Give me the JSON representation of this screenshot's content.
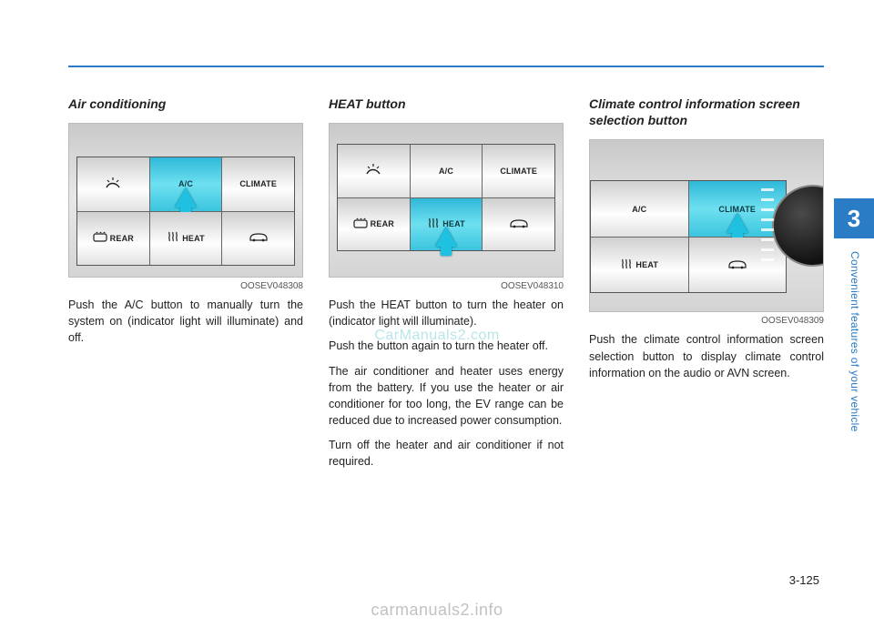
{
  "page": {
    "chapter_number": "3",
    "chapter_title": "Convenient features of your vehicle",
    "page_number": "3-125",
    "watermark_center": "CarManuals2.com",
    "watermark_footer": "carmanuals2.info",
    "accent_color": "#2a7cc4"
  },
  "col1": {
    "heading": "Air conditioning",
    "figure_code": "OOSEV048308",
    "figure": {
      "rows": [
        [
          {
            "label": "",
            "icon": "airflow",
            "active": false
          },
          {
            "label": "A/C",
            "icon": "",
            "active": true,
            "arrow": true
          },
          {
            "label": "CLIMATE",
            "icon": "",
            "active": false
          }
        ],
        [
          {
            "label": "REAR",
            "icon": "defrost",
            "active": false
          },
          {
            "label": "HEAT",
            "icon": "heatwaves",
            "active": false
          },
          {
            "label": "",
            "icon": "car",
            "active": false
          }
        ]
      ]
    },
    "paragraphs": [
      "Push the A/C button to manually turn the system on (indicator light will illuminate) and off."
    ]
  },
  "col2": {
    "heading": "HEAT button",
    "figure_code": "OOSEV048310",
    "figure": {
      "rows": [
        [
          {
            "label": "",
            "icon": "airflow",
            "active": false
          },
          {
            "label": "A/C",
            "icon": "",
            "active": false
          },
          {
            "label": "CLIMATE",
            "icon": "",
            "active": false
          }
        ],
        [
          {
            "label": "REAR",
            "icon": "defrost",
            "active": false
          },
          {
            "label": "HEAT",
            "icon": "heatwaves",
            "active": true,
            "arrow": true
          },
          {
            "label": "",
            "icon": "car",
            "active": false
          }
        ]
      ]
    },
    "paragraphs": [
      "Push the HEAT button to turn the heater on (indicator light will illuminate).",
      "Push the button again to turn the heater off.",
      "The air conditioner and heater uses energy from the battery. If you use the heater or air conditioner for too long, the EV range can be reduced due to increased power consumption.",
      "Turn off the heater and air conditioner if not required."
    ]
  },
  "col3": {
    "heading": "Climate control information screen selection button",
    "figure_code": "OOSEV048309",
    "figure": {
      "dial": true,
      "rows": [
        [
          {
            "label": "A/C",
            "icon": "",
            "active": false
          },
          {
            "label": "CLIMATE",
            "icon": "",
            "active": true,
            "arrow": true
          }
        ],
        [
          {
            "label": "HEAT",
            "icon": "heatwaves",
            "active": false
          },
          {
            "label": "",
            "icon": "car",
            "active": false
          }
        ]
      ]
    },
    "paragraphs": [
      "Push the climate control information screen selection button to display climate control information on the audio or AVN screen."
    ]
  }
}
